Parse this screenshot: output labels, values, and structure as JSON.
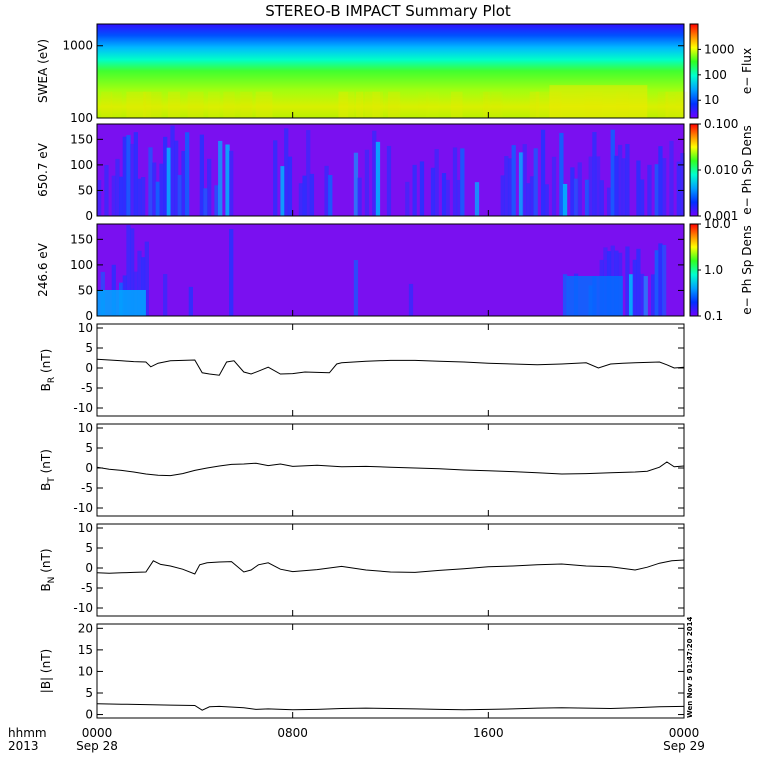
{
  "chart_data": {
    "title": "STEREO-B IMPACT Summary Plot",
    "x_axis": {
      "unit_label": "hhmm",
      "year_label": "2013",
      "range_hours": [
        0,
        24
      ],
      "ticks": [
        {
          "hour": 0,
          "label": "0000",
          "date": "Sep 28"
        },
        {
          "hour": 8,
          "label": "0800",
          "date": ""
        },
        {
          "hour": 16,
          "label": "1600",
          "date": ""
        },
        {
          "hour": 24,
          "label": "0000",
          "date": "Sep 29"
        }
      ]
    },
    "timestamp": "Wen Nov  5 01:47:20 2014",
    "spectrograms": [
      {
        "type": "heatmap",
        "ylabel": "SWEA (eV)",
        "scale": "log",
        "ylim": [
          100,
          2000
        ],
        "yticks": [
          {
            "v": 100,
            "label": "100"
          },
          {
            "v": 1000,
            "label": "1000"
          }
        ],
        "colorbar": {
          "label": "e− Flux",
          "scale": "log",
          "range": [
            2,
            10000
          ],
          "ticks": [
            {
              "v": 10,
              "label": "10"
            },
            {
              "v": 100,
              "label": "100"
            },
            {
              "v": 1000,
              "label": "1000"
            }
          ]
        },
        "description_bands": "peak flux near 100 eV, decreasing with energy"
      },
      {
        "type": "heatmap",
        "ylabel": "650.7 eV",
        "scale": "linear",
        "ylim": [
          0,
          180
        ],
        "yticks": [
          {
            "v": 0,
            "label": "0"
          },
          {
            "v": 50,
            "label": "50"
          },
          {
            "v": 100,
            "label": "100"
          },
          {
            "v": 150,
            "label": "150"
          }
        ],
        "colorbar": {
          "label": "e− Ph Sp Dens",
          "scale": "log",
          "range": [
            0.001,
            0.1
          ],
          "ticks": [
            {
              "v": 0.001,
              "label": "0.001"
            },
            {
              "v": 0.01,
              "label": "0.010"
            },
            {
              "v": 0.1,
              "label": "0.100"
            }
          ]
        }
      },
      {
        "type": "heatmap",
        "ylabel": "246.6 eV",
        "scale": "linear",
        "ylim": [
          0,
          180
        ],
        "yticks": [
          {
            "v": 0,
            "label": "0"
          },
          {
            "v": 50,
            "label": "50"
          },
          {
            "v": 100,
            "label": "100"
          },
          {
            "v": 150,
            "label": "150"
          }
        ],
        "colorbar": {
          "label": "e− Ph Sp Dens",
          "scale": "log",
          "range": [
            0.1,
            10
          ],
          "ticks": [
            {
              "v": 0.1,
              "label": "0.1"
            },
            {
              "v": 1,
              "label": "1.0"
            },
            {
              "v": 10,
              "label": "10.0"
            }
          ]
        }
      }
    ],
    "line_panels": [
      {
        "type": "line",
        "ylabel": "B",
        "ylabel_sub": "R",
        "ylabel_unit": " (nT)",
        "ylim": [
          -12,
          11
        ],
        "yticks": [
          -10,
          -5,
          0,
          5,
          10
        ],
        "x_hours": [
          0,
          0.5,
          1,
          1.5,
          2,
          2.2,
          2.5,
          3,
          3.5,
          4,
          4.3,
          4.6,
          5,
          5.3,
          5.6,
          6,
          6.3,
          6.6,
          7,
          7.5,
          8,
          8.5,
          9,
          9.5,
          9.8,
          10,
          10.5,
          11,
          12,
          13,
          14,
          15,
          16,
          17,
          18,
          19,
          20,
          20.5,
          21,
          21.5,
          22,
          23,
          23.3,
          23.6,
          24
        ],
        "values": [
          2.2,
          2.0,
          1.8,
          1.6,
          1.5,
          0.3,
          1.2,
          1.8,
          1.9,
          2.0,
          -1.2,
          -1.5,
          -1.8,
          1.5,
          1.8,
          -1.0,
          -1.5,
          -0.8,
          0.2,
          -1.5,
          -1.4,
          -1.0,
          -1.1,
          -1.2,
          1.0,
          1.3,
          1.5,
          1.7,
          1.9,
          1.9,
          1.7,
          1.5,
          1.2,
          1.0,
          0.8,
          1.0,
          1.3,
          0.0,
          1.0,
          1.2,
          1.3,
          1.5,
          0.8,
          0.0,
          0.2
        ]
      },
      {
        "type": "line",
        "ylabel": "B",
        "ylabel_sub": "T",
        "ylabel_unit": " (nT)",
        "ylim": [
          -12,
          11
        ],
        "yticks": [
          -10,
          -5,
          0,
          5,
          10
        ],
        "x_hours": [
          0,
          0.5,
          1,
          1.5,
          2,
          2.5,
          3,
          3.5,
          4,
          4.5,
          5,
          5.5,
          6,
          6.5,
          7,
          7.5,
          8,
          9,
          10,
          11,
          12,
          13,
          14,
          15,
          16,
          17,
          18,
          19,
          20,
          21,
          22,
          22.5,
          23,
          23.3,
          23.6,
          24
        ],
        "values": [
          0.2,
          -0.3,
          -0.6,
          -1.0,
          -1.5,
          -1.8,
          -1.9,
          -1.4,
          -0.6,
          0.0,
          0.5,
          0.9,
          1.0,
          1.2,
          0.6,
          1.0,
          0.4,
          0.7,
          0.3,
          0.4,
          0.2,
          0.0,
          -0.2,
          -0.5,
          -0.7,
          -0.9,
          -1.2,
          -1.5,
          -1.4,
          -1.2,
          -1.0,
          -0.8,
          0.2,
          1.5,
          0.3,
          0.5
        ]
      },
      {
        "type": "line",
        "ylabel": "B",
        "ylabel_sub": "N",
        "ylabel_unit": " (nT)",
        "ylim": [
          -12,
          11
        ],
        "yticks": [
          -10,
          -5,
          0,
          5,
          10
        ],
        "x_hours": [
          0,
          0.5,
          1,
          1.5,
          2,
          2.3,
          2.6,
          3,
          3.5,
          4,
          4.2,
          4.5,
          5,
          5.5,
          6,
          6.3,
          6.6,
          7,
          7.5,
          8,
          9,
          10,
          11,
          12,
          13,
          14,
          15,
          16,
          17,
          18,
          19,
          20,
          21,
          22,
          22.5,
          23,
          23.5,
          24
        ],
        "values": [
          -1.2,
          -1.3,
          -1.2,
          -1.1,
          -1.0,
          1.8,
          0.9,
          0.5,
          -0.3,
          -1.5,
          0.8,
          1.3,
          1.5,
          1.6,
          -1.0,
          -0.5,
          0.8,
          1.3,
          -0.3,
          -0.9,
          -0.4,
          0.4,
          -0.5,
          -1.0,
          -1.1,
          -0.6,
          -0.2,
          0.3,
          0.5,
          0.8,
          1.0,
          0.5,
          0.3,
          -0.5,
          0.2,
          1.2,
          1.8,
          2.0
        ]
      },
      {
        "type": "line",
        "ylabel": "|B|",
        "ylabel_sub": "",
        "ylabel_unit": " (nT)",
        "ylim": [
          -0.8,
          21
        ],
        "yticks": [
          0,
          5,
          10,
          15,
          20
        ],
        "x_hours": [
          0,
          1,
          2,
          3,
          4,
          4.3,
          4.6,
          5,
          6,
          6.5,
          7,
          8,
          9,
          10,
          11,
          12,
          13,
          14,
          15,
          16,
          17,
          18,
          19,
          20,
          21,
          22,
          23,
          24
        ],
        "values": [
          2.5,
          2.4,
          2.3,
          2.2,
          2.1,
          1.0,
          1.8,
          1.9,
          1.6,
          1.2,
          1.3,
          1.1,
          1.2,
          1.4,
          1.5,
          1.4,
          1.3,
          1.2,
          1.1,
          1.2,
          1.3,
          1.5,
          1.6,
          1.5,
          1.4,
          1.6,
          1.8,
          1.9
        ]
      }
    ]
  }
}
